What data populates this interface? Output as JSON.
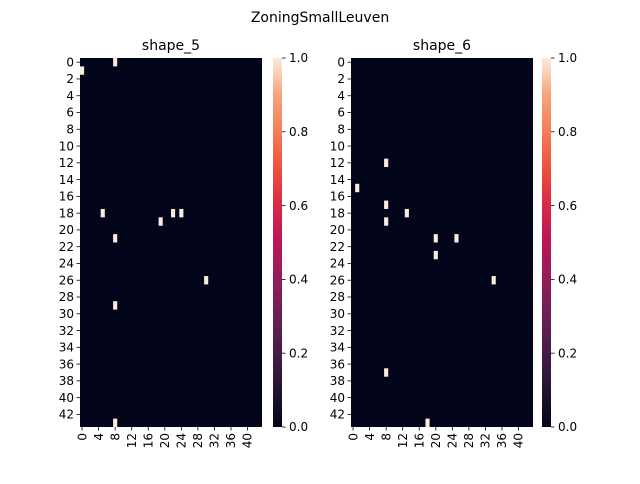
{
  "figure": {
    "suptitle": "ZoningSmallLeuven"
  },
  "chart_data": [
    {
      "type": "heatmap",
      "title": "shape_5",
      "rows": 44,
      "cols": 44,
      "row_ticks": [
        0,
        2,
        4,
        6,
        8,
        10,
        12,
        14,
        16,
        18,
        20,
        22,
        24,
        26,
        28,
        30,
        32,
        34,
        36,
        38,
        40,
        42
      ],
      "col_ticks": [
        0,
        4,
        8,
        12,
        16,
        20,
        24,
        28,
        32,
        36,
        40
      ],
      "vmin": 0,
      "vmax": 1,
      "colorbar_ticks": [
        "0.0",
        "0.2",
        "0.4",
        "0.6",
        "0.8",
        "1.0"
      ],
      "cells_value_1": [
        [
          0,
          8
        ],
        [
          1,
          0
        ],
        [
          18,
          5
        ],
        [
          18,
          22
        ],
        [
          18,
          24
        ],
        [
          19,
          19
        ],
        [
          21,
          8
        ],
        [
          26,
          30
        ],
        [
          29,
          8
        ],
        [
          43,
          8
        ]
      ]
    },
    {
      "type": "heatmap",
      "title": "shape_6",
      "rows": 44,
      "cols": 44,
      "row_ticks": [
        0,
        2,
        4,
        6,
        8,
        10,
        12,
        14,
        16,
        18,
        20,
        22,
        24,
        26,
        28,
        30,
        32,
        34,
        36,
        38,
        40,
        42
      ],
      "col_ticks": [
        0,
        4,
        8,
        12,
        16,
        20,
        24,
        28,
        32,
        36,
        40
      ],
      "vmin": 0,
      "vmax": 1,
      "colorbar_ticks": [
        "0.0",
        "0.2",
        "0.4",
        "0.6",
        "0.8",
        "1.0"
      ],
      "cells_value_1": [
        [
          12,
          8
        ],
        [
          15,
          1
        ],
        [
          17,
          8
        ],
        [
          18,
          13
        ],
        [
          19,
          8
        ],
        [
          21,
          20
        ],
        [
          21,
          25
        ],
        [
          23,
          20
        ],
        [
          26,
          34
        ],
        [
          37,
          8
        ],
        [
          43,
          18
        ]
      ]
    }
  ],
  "colors": {
    "low": "#03051a",
    "high": "#faebdd"
  }
}
